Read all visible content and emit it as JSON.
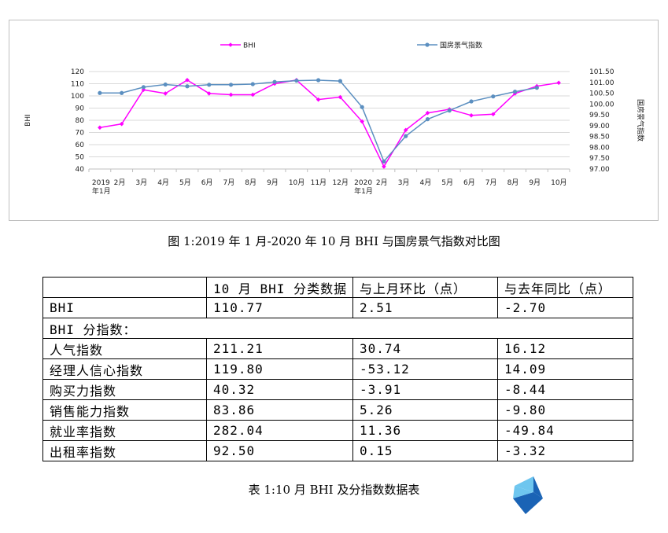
{
  "chart_data": {
    "type": "line",
    "categories": [
      "2019\n年1月",
      "2月",
      "3月",
      "4月",
      "5月",
      "6月",
      "7月",
      "8月",
      "9月",
      "10月",
      "11月",
      "12月",
      "2020\n年1月",
      "2月",
      "3月",
      "4月",
      "5月",
      "6月",
      "7月",
      "8月",
      "9月",
      "10月"
    ],
    "series": [
      {
        "name": "BHI",
        "axis": "left",
        "color": "#ff00ff",
        "values": [
          74,
          77,
          105,
          102,
          113,
          102,
          101,
          101,
          110,
          113,
          97,
          99,
          79,
          42,
          72,
          86,
          89,
          84,
          85,
          102,
          108,
          110.77
        ]
      },
      {
        "name": "国房景气指数",
        "axis": "right",
        "color": "#5b8fc0",
        "values": [
          100.51,
          100.51,
          100.78,
          100.9,
          100.82,
          100.89,
          100.89,
          100.92,
          101.02,
          101.08,
          101.1,
          101.06,
          99.86,
          97.35,
          98.52,
          99.3,
          99.7,
          100.12,
          100.35,
          100.57,
          100.75,
          null
        ]
      }
    ],
    "ylabel": "BHI",
    "y2label": "国房景气指数",
    "ylim": [
      40,
      120
    ],
    "y2lim": [
      97.0,
      101.5
    ],
    "yticks": [
      "120",
      "110",
      "100",
      "90",
      "80",
      "70",
      "60",
      "50",
      "40"
    ],
    "y2ticks": [
      "101.50",
      "101.00",
      "100.50",
      "100.00",
      "99.50",
      "99.00",
      "98.50",
      "98.00",
      "97.50",
      "97.00"
    ],
    "grid": "horizontal",
    "legend_position": "top-center"
  },
  "figure_caption": "图 1:2019 年 1 月-2020 年 10 月 BHI 与国房景气指数对比图",
  "table": {
    "header": [
      "",
      "10 月 BHI 分类数据",
      "与上月环比（点）",
      "与去年同比（点）"
    ],
    "rows": [
      [
        "BHI",
        "110.77",
        "2.51",
        "-2.70"
      ],
      [
        "BHI 分指数：",
        "",
        "",
        ""
      ],
      [
        "人气指数",
        "211.21",
        "30.74",
        "16.12"
      ],
      [
        "经理人信心指数",
        "119.80",
        "-53.12",
        "14.09"
      ],
      [
        "购买力指数",
        "40.32",
        "-3.91",
        "-8.44"
      ],
      [
        "销售能力指数",
        "83.86",
        "5.26",
        "-9.80"
      ],
      [
        "就业率指数",
        "282.04",
        "11.36",
        "-49.84"
      ],
      [
        "出租率指数",
        "92.50",
        "0.15",
        "-3.32"
      ]
    ]
  },
  "table_caption": "表 1:10 月 BHI 及分指数数据表",
  "colors": {
    "logo_light": "#6ec6ef",
    "logo_dark": "#1a63b5"
  }
}
